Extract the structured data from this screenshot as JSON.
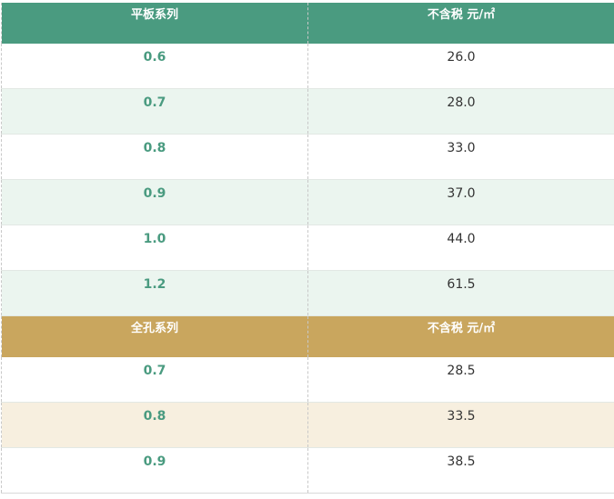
{
  "sections": [
    {
      "name": "平板系列",
      "price_header": "不含税 元/㎡",
      "rows": [
        {
          "thickness": "0.6",
          "price": "26.0"
        },
        {
          "thickness": "0.7",
          "price": "28.0"
        },
        {
          "thickness": "0.8",
          "price": "33.0"
        },
        {
          "thickness": "0.9",
          "price": "37.0"
        },
        {
          "thickness": "1.0",
          "price": "44.0"
        },
        {
          "thickness": "1.2",
          "price": "61.5"
        }
      ]
    },
    {
      "name": "全孔系列",
      "price_header": "不含税 元/㎡",
      "rows": [
        {
          "thickness": "0.7",
          "price": "28.5"
        },
        {
          "thickness": "0.8",
          "price": "33.5"
        },
        {
          "thickness": "0.9",
          "price": "38.5"
        }
      ]
    }
  ],
  "colors": {
    "flat_header": "#4a9b80",
    "perforated_header": "#c9a65e",
    "flat_alt_row": "#ebf5ef",
    "perforated_alt_row": "#f7efdf"
  }
}
